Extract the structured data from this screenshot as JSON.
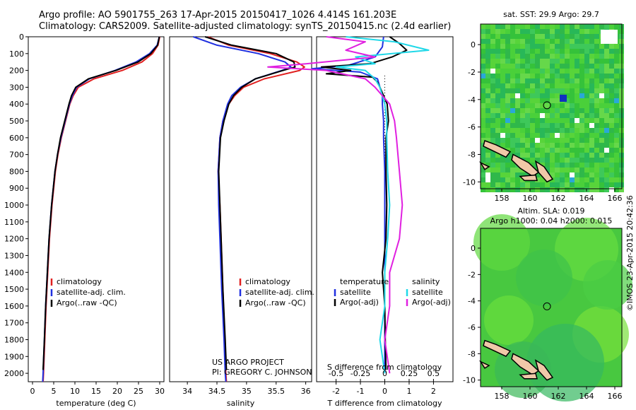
{
  "header": {
    "line1": "Argo profile: AO 5901755_263 17-Apr-2015 20150417_1026 4.414S 161.203E",
    "line2": "Climatology: CARS2009. Satellite-adjusted climatology: synTS_20150415.nc (2.4d earlier)"
  },
  "credit": "©IMOS 23-Apr-2015 20:42:36",
  "pi_text": {
    "line1": "US ARGO PROJECT",
    "line2": "PI: GREGORY C. JOHNSON"
  },
  "colors": {
    "climatology": "#e02020",
    "satellite": "#2030e0",
    "argo": "#000000",
    "sal_satellite": "#20d8e8",
    "sal_argo": "#e020e0",
    "land": "#f0c8a8"
  },
  "chart_data": [
    {
      "id": "temperature",
      "type": "line",
      "xlabel": "temperature (deg C)",
      "xlim": [
        -1,
        31
      ],
      "ylim": [
        2050,
        0
      ],
      "xticks": [
        "0",
        "5",
        "10",
        "15",
        "20",
        "25",
        "30"
      ],
      "depth_ticks": [
        "0",
        "100",
        "200",
        "300",
        "400",
        "500",
        "600",
        "700",
        "800",
        "900",
        "1000",
        "1100",
        "1200",
        "1300",
        "1400",
        "1500",
        "1600",
        "1700",
        "1800",
        "1900",
        "2000"
      ],
      "legend": [
        "climatology",
        "satellite-adj. clim.",
        "Argo(..raw -QC)"
      ],
      "series": [
        {
          "name": "climatology",
          "depth": [
            0,
            50,
            100,
            150,
            200,
            250,
            300,
            350,
            400,
            500,
            600,
            700,
            800,
            1000,
            1200,
            1400,
            1600,
            1800,
            2000,
            2050
          ],
          "values": [
            30,
            29.6,
            28.3,
            25.8,
            21.2,
            14.5,
            10.8,
            9.6,
            8.8,
            7.8,
            6.8,
            6.0,
            5.4,
            4.6,
            4.0,
            3.6,
            3.2,
            2.9,
            2.6,
            2.5
          ]
        },
        {
          "name": "satellite-adj. clim.",
          "depth": [
            0,
            50,
            100,
            150,
            200,
            250,
            300,
            350,
            400,
            500,
            600,
            700,
            800,
            1000,
            1200,
            1400,
            1600,
            1800,
            2000,
            2050
          ],
          "values": [
            29.9,
            29.4,
            27.6,
            24.4,
            19.5,
            13.4,
            10.4,
            9.4,
            8.7,
            7.7,
            6.7,
            5.9,
            5.3,
            4.5,
            3.9,
            3.5,
            3.1,
            2.8,
            2.5,
            2.4
          ]
        },
        {
          "name": "Argo(..raw -QC)",
          "depth": [
            0,
            50,
            100,
            150,
            200,
            250,
            300,
            350,
            400,
            500,
            600,
            700,
            800,
            1000,
            1200,
            1400,
            1600,
            1800,
            1980
          ],
          "values": [
            29.9,
            29.5,
            27.9,
            24.9,
            19.7,
            13.2,
            10.2,
            9.2,
            8.6,
            7.6,
            6.6,
            5.9,
            5.3,
            4.5,
            3.9,
            3.5,
            3.1,
            2.8,
            2.5
          ]
        }
      ]
    },
    {
      "id": "salinity",
      "type": "line",
      "xlabel": "salinity",
      "xlim": [
        33.7,
        36.1
      ],
      "ylim": [
        2050,
        0
      ],
      "xticks": [
        "34",
        "34.5",
        "35",
        "35.5",
        "36"
      ],
      "legend": [
        "climatology",
        "satellite-adj. clim.",
        "Argo(..raw -QC)"
      ],
      "series": [
        {
          "name": "climatology",
          "depth": [
            0,
            50,
            100,
            150,
            180,
            200,
            250,
            300,
            350,
            400,
            500,
            600,
            800,
            1000,
            1200,
            1500,
            1800,
            2000,
            2050
          ],
          "values": [
            34.35,
            34.7,
            35.4,
            35.85,
            35.98,
            35.9,
            35.3,
            34.95,
            34.8,
            34.7,
            34.6,
            34.55,
            34.52,
            34.55,
            34.57,
            34.6,
            34.63,
            34.65,
            34.66
          ]
        },
        {
          "name": "satellite-adj. clim.",
          "depth": [
            0,
            50,
            100,
            150,
            180,
            200,
            250,
            300,
            350,
            400,
            500,
            600,
            800,
            1000,
            1200,
            1500,
            1800,
            2000,
            2050
          ],
          "values": [
            34.1,
            34.5,
            35.2,
            35.65,
            35.75,
            35.6,
            35.15,
            34.9,
            34.75,
            34.68,
            34.6,
            34.55,
            34.52,
            34.53,
            34.55,
            34.58,
            34.62,
            34.64,
            34.65
          ]
        },
        {
          "name": "Argo(..raw -QC)",
          "depth": [
            0,
            50,
            100,
            150,
            180,
            200,
            250,
            300,
            350,
            400,
            500,
            600,
            800,
            1000,
            1200,
            1500,
            1800,
            1980
          ],
          "values": [
            34.3,
            34.75,
            35.5,
            35.8,
            35.82,
            35.62,
            35.15,
            34.92,
            34.78,
            34.7,
            34.62,
            34.56,
            34.53,
            34.55,
            34.57,
            34.6,
            34.64,
            34.66
          ]
        }
      ]
    },
    {
      "id": "difference",
      "type": "line",
      "xlabel": "T difference from climatology",
      "xlabel2": "S difference from climatology",
      "xlim": [
        -2.8,
        2.8
      ],
      "ylim": [
        2050,
        0
      ],
      "xticks": [
        "-2",
        "-1",
        "0",
        "1",
        "2"
      ],
      "xticks2": [
        "-0.5",
        "-0.25",
        "0",
        "0.25",
        "0.5"
      ],
      "legend_headers": [
        "temperature",
        "salinity"
      ],
      "legend": [
        "satellite",
        "Argo(-adj)",
        "satellite",
        "Argo(-adj)"
      ],
      "series": [
        {
          "name": "satellite",
          "depth": [
            0,
            60,
            120,
            170,
            190,
            210,
            250,
            300,
            350,
            400,
            500,
            600,
            800,
            1000,
            1200,
            1400,
            1600,
            1800,
            2000
          ],
          "values": [
            -0.05,
            -0.1,
            -0.4,
            -1.5,
            -3.0,
            -1.0,
            -0.3,
            -0.2,
            -0.1,
            -0.1,
            -0.05,
            -0.05,
            0,
            0,
            0,
            0,
            0,
            0,
            0
          ]
        },
        {
          "name": "Argo(-adj)",
          "depth": [
            0,
            40,
            80,
            120,
            160,
            180,
            200,
            220,
            240,
            270,
            300,
            350,
            400,
            500,
            600,
            800,
            1000,
            1200,
            1400,
            1600,
            1800,
            1980
          ],
          "values": [
            0.2,
            0.6,
            0.9,
            0.3,
            -0.6,
            -2.6,
            -1.4,
            -2.4,
            -0.5,
            -0.3,
            -0.2,
            -0.05,
            0.1,
            0.15,
            0.05,
            0.05,
            0.08,
            0.05,
            -0.1,
            0,
            0.02,
            0.05
          ]
        },
        {
          "name": "satellite",
          "depth": [
            0,
            30,
            80,
            120,
            160,
            180,
            200,
            250,
            300,
            400,
            500,
            600,
            800,
            1000,
            1200,
            1400,
            1600,
            1800,
            2000
          ],
          "values": [
            -0.4,
            0.1,
            0.45,
            -0.3,
            -0.1,
            -0.5,
            -0.2,
            -0.1,
            -0.05,
            0,
            0.02,
            0.02,
            0.03,
            0.05,
            0.03,
            0,
            0,
            -0.05,
            0
          ]
        },
        {
          "name": "Argo(-adj)",
          "depth": [
            0,
            30,
            80,
            120,
            160,
            180,
            200,
            250,
            300,
            400,
            500,
            600,
            800,
            1000,
            1200,
            1400,
            1600,
            1800,
            2000
          ],
          "values": [
            -0.6,
            -0.2,
            -0.4,
            -0.1,
            -0.8,
            -1.2,
            -0.6,
            -0.2,
            -0.1,
            0.05,
            0.1,
            0.12,
            0.15,
            0.18,
            0.15,
            0.05,
            0.05,
            0,
            0.05
          ]
        }
      ]
    },
    {
      "id": "sst_map",
      "type": "heatmap",
      "title": "sat. SST: 29.9 Argo: 29.7",
      "xticks": [
        "158",
        "160",
        "162",
        "164",
        "166"
      ],
      "yticks": [
        "0",
        "-2",
        "-4",
        "-6",
        "-8",
        "-10"
      ],
      "xlim": [
        156.5,
        166.5
      ],
      "ylim": [
        -10.5,
        1.5
      ],
      "argo_position": [
        161.203,
        -4.414
      ]
    },
    {
      "id": "sla_map",
      "type": "heatmap",
      "title": "Altim. SLA: 0.019",
      "subtitle": "Argo h1000: 0.04 h2000: 0.015",
      "xticks": [
        "158",
        "160",
        "162",
        "164",
        "166"
      ],
      "yticks": [
        "0",
        "-2",
        "-4",
        "-6",
        "-8",
        "-10"
      ],
      "xlim": [
        156.5,
        166.5
      ],
      "ylim": [
        -10.5,
        1.5
      ],
      "argo_position": [
        161.203,
        -4.414
      ]
    }
  ]
}
